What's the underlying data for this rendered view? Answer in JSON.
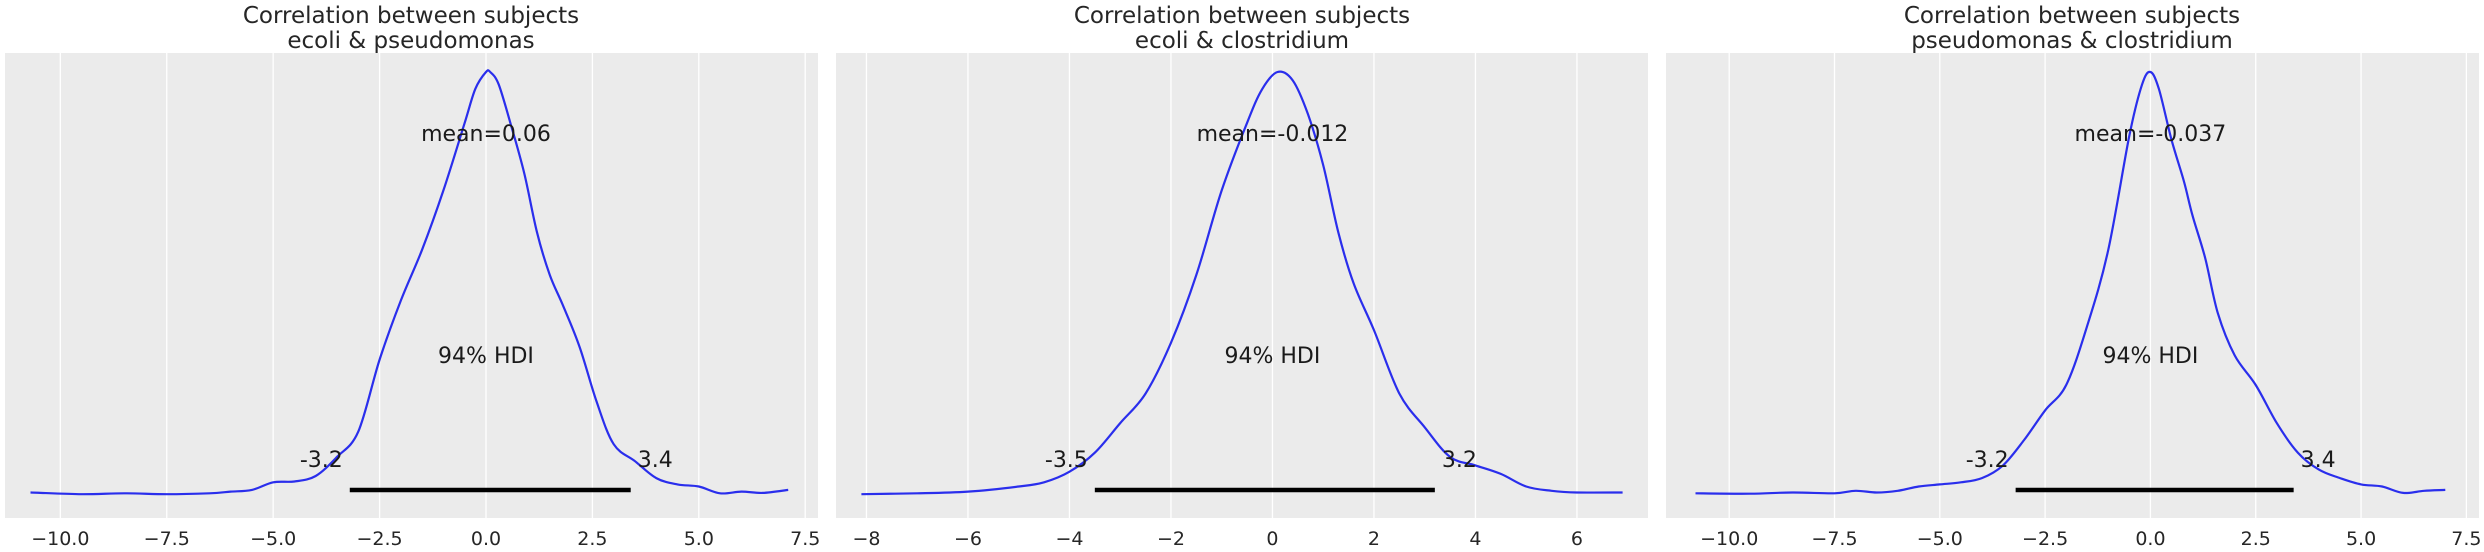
{
  "colors": {
    "panel_bg": "#ebebeb",
    "grid": "#ffffff",
    "kde_line": "#2a2eec",
    "hdi_bar": "#000000"
  },
  "chart_data": [
    {
      "type": "line",
      "title_line1": "Correlation between subjects",
      "title_line2": "ecoli & pseudomonas",
      "xlim": [
        -11.3,
        7.8
      ],
      "xticks": [
        -10,
        -7.5,
        -5,
        -2.5,
        0,
        2.5,
        5,
        7.5
      ],
      "xtick_labels": [
        "−10.0",
        "−7.5",
        "−5.0",
        "−2.5",
        "0.0",
        "2.5",
        "5.0",
        "7.5"
      ],
      "mean_label": "mean=0.06",
      "hdi_label": "94% HDI",
      "hdi": [
        -3.2,
        3.4
      ],
      "hdi_low_label": "-3.2",
      "hdi_high_label": "3.4",
      "grid": true,
      "x": [
        -10.7,
        -9.5,
        -8.5,
        -7.5,
        -6.5,
        -6.0,
        -5.5,
        -5.0,
        -4.5,
        -4.0,
        -3.5,
        -3.0,
        -2.5,
        -2.0,
        -1.5,
        -1.0,
        -0.5,
        -0.25,
        0.0,
        0.1,
        0.3,
        0.6,
        0.9,
        1.2,
        1.5,
        1.8,
        2.2,
        2.6,
        3.0,
        3.5,
        4.0,
        4.5,
        5.0,
        5.5,
        6.0,
        6.5,
        7.1
      ],
      "density": [
        0.006,
        0.002,
        0.004,
        0.002,
        0.004,
        0.008,
        0.012,
        0.03,
        0.032,
        0.045,
        0.09,
        0.15,
        0.32,
        0.46,
        0.58,
        0.72,
        0.88,
        0.96,
        1.0,
        1.0,
        0.97,
        0.87,
        0.76,
        0.62,
        0.52,
        0.45,
        0.35,
        0.22,
        0.12,
        0.08,
        0.04,
        0.025,
        0.02,
        0.004,
        0.008,
        0.005,
        0.012
      ]
    },
    {
      "type": "line",
      "title_line1": "Correlation between subjects",
      "title_line2": "ecoli & clostridium",
      "xlim": [
        -8.6,
        7.4
      ],
      "xticks": [
        -8,
        -6,
        -4,
        -2,
        0,
        2,
        4,
        6
      ],
      "xtick_labels": [
        "−8",
        "−6",
        "−4",
        "−2",
        "0",
        "2",
        "4",
        "6"
      ],
      "mean_label": "mean=-0.012",
      "hdi_label": "94% HDI",
      "hdi": [
        -3.5,
        3.2
      ],
      "hdi_low_label": "-3.5",
      "hdi_high_label": "3.2",
      "grid": true,
      "x": [
        -8.1,
        -7.0,
        -6.0,
        -5.0,
        -4.5,
        -4.0,
        -3.5,
        -3.0,
        -2.5,
        -2.0,
        -1.5,
        -1.0,
        -0.5,
        -0.2,
        0.1,
        0.4,
        0.7,
        1.0,
        1.3,
        1.6,
        2.0,
        2.5,
        3.0,
        3.5,
        4.0,
        4.5,
        5.0,
        5.5,
        6.0,
        6.9
      ],
      "density": [
        0.002,
        0.004,
        0.008,
        0.02,
        0.03,
        0.055,
        0.1,
        0.17,
        0.24,
        0.36,
        0.52,
        0.72,
        0.88,
        0.96,
        1.0,
        0.98,
        0.9,
        0.78,
        0.62,
        0.5,
        0.39,
        0.24,
        0.16,
        0.09,
        0.07,
        0.05,
        0.02,
        0.01,
        0.006,
        0.006
      ]
    },
    {
      "type": "line",
      "title_line1": "Correlation between subjects",
      "title_line2": "pseudomonas & clostridium",
      "xlim": [
        -11.5,
        7.8
      ],
      "xticks": [
        -10,
        -7.5,
        -5,
        -2.5,
        0,
        2.5,
        5,
        7.5
      ],
      "xtick_labels": [
        "−10.0",
        "−7.5",
        "−5.0",
        "−2.5",
        "0.0",
        "2.5",
        "5.0",
        "7.5"
      ],
      "mean_label": "mean=-0.037",
      "hdi_label": "94% HDI",
      "hdi": [
        -3.2,
        3.4
      ],
      "hdi_low_label": "-3.2",
      "hdi_high_label": "3.4",
      "grid": true,
      "x": [
        -10.8,
        -9.5,
        -8.5,
        -7.5,
        -7.0,
        -6.5,
        -6.0,
        -5.5,
        -5.0,
        -4.5,
        -4.0,
        -3.5,
        -3.0,
        -2.5,
        -2.0,
        -1.5,
        -1.0,
        -0.5,
        -0.2,
        0.0,
        0.2,
        0.5,
        0.8,
        1.0,
        1.3,
        1.6,
        2.0,
        2.5,
        3.0,
        3.5,
        4.0,
        4.5,
        5.0,
        5.5,
        6.0,
        6.5,
        7.0
      ],
      "density": [
        0.004,
        0.003,
        0.006,
        0.004,
        0.01,
        0.006,
        0.01,
        0.02,
        0.025,
        0.03,
        0.04,
        0.07,
        0.13,
        0.2,
        0.26,
        0.4,
        0.58,
        0.85,
        0.97,
        1.0,
        0.96,
        0.84,
        0.74,
        0.66,
        0.56,
        0.43,
        0.33,
        0.26,
        0.17,
        0.1,
        0.06,
        0.04,
        0.025,
        0.02,
        0.005,
        0.01,
        0.012
      ]
    }
  ]
}
